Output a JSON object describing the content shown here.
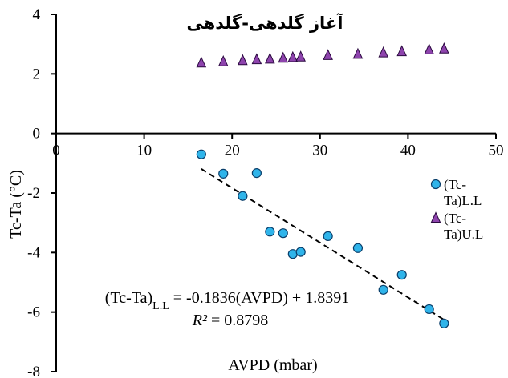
{
  "chart_data": {
    "type": "scatter",
    "title": "آغاز گلدهی-گلدهی",
    "xlabel": "AVPD (mbar)",
    "ylabel": "Tc-Ta (°C)",
    "xlim": [
      0,
      50
    ],
    "ylim": [
      -8,
      4
    ],
    "x_ticks": [
      "0",
      "10",
      "20",
      "30",
      "40",
      "50"
    ],
    "y_ticks": [
      "4",
      "2",
      "0",
      "-2",
      "-4",
      "-6",
      "-8"
    ],
    "grid": false,
    "legend_position": "right",
    "series": [
      {
        "name": "(Tc-Ta)L.L",
        "marker": "circle",
        "color": "#2fb4ea",
        "points": [
          {
            "x": 16.5,
            "y": -0.7
          },
          {
            "x": 19.0,
            "y": -1.35
          },
          {
            "x": 21.2,
            "y": -2.1
          },
          {
            "x": 22.8,
            "y": -1.33
          },
          {
            "x": 24.3,
            "y": -3.3
          },
          {
            "x": 25.8,
            "y": -3.35
          },
          {
            "x": 26.9,
            "y": -4.05
          },
          {
            "x": 27.8,
            "y": -3.98
          },
          {
            "x": 30.9,
            "y": -3.45
          },
          {
            "x": 34.3,
            "y": -3.85
          },
          {
            "x": 37.2,
            "y": -5.25
          },
          {
            "x": 39.3,
            "y": -4.75
          },
          {
            "x": 42.4,
            "y": -5.9
          },
          {
            "x": 44.1,
            "y": -6.38
          }
        ]
      },
      {
        "name": "(Tc-Ta)U.L",
        "marker": "triangle",
        "color": "#8e44ad",
        "points": [
          {
            "x": 16.5,
            "y": 2.38
          },
          {
            "x": 19.0,
            "y": 2.42
          },
          {
            "x": 21.2,
            "y": 2.46
          },
          {
            "x": 22.8,
            "y": 2.49
          },
          {
            "x": 24.3,
            "y": 2.51
          },
          {
            "x": 25.8,
            "y": 2.54
          },
          {
            "x": 26.9,
            "y": 2.56
          },
          {
            "x": 27.8,
            "y": 2.58
          },
          {
            "x": 30.9,
            "y": 2.63
          },
          {
            "x": 34.3,
            "y": 2.67
          },
          {
            "x": 37.2,
            "y": 2.72
          },
          {
            "x": 39.3,
            "y": 2.76
          },
          {
            "x": 42.4,
            "y": 2.82
          },
          {
            "x": 44.1,
            "y": 2.85
          }
        ]
      }
    ],
    "trendline": {
      "series": "(Tc-Ta)L.L",
      "style": "dashed",
      "slope": -0.1836,
      "intercept": 1.8391,
      "x_range": [
        16.5,
        44.1
      ],
      "equation_label": {
        "prefix": "(Tc-Ta)",
        "subscript": "L.L",
        "suffix": " = -0.1836(AVPD) + 1.8391"
      },
      "r2_label": {
        "symbol": "R²",
        "value": " = 0.8798"
      }
    },
    "legend": {
      "entries": [
        {
          "lines": [
            "(Tc-",
            "Ta)L.L"
          ],
          "marker": "circle",
          "color": "#2fb4ea"
        },
        {
          "lines": [
            "(Tc-",
            "Ta)U.L"
          ],
          "marker": "triangle",
          "color": "#8e44ad"
        }
      ]
    }
  }
}
